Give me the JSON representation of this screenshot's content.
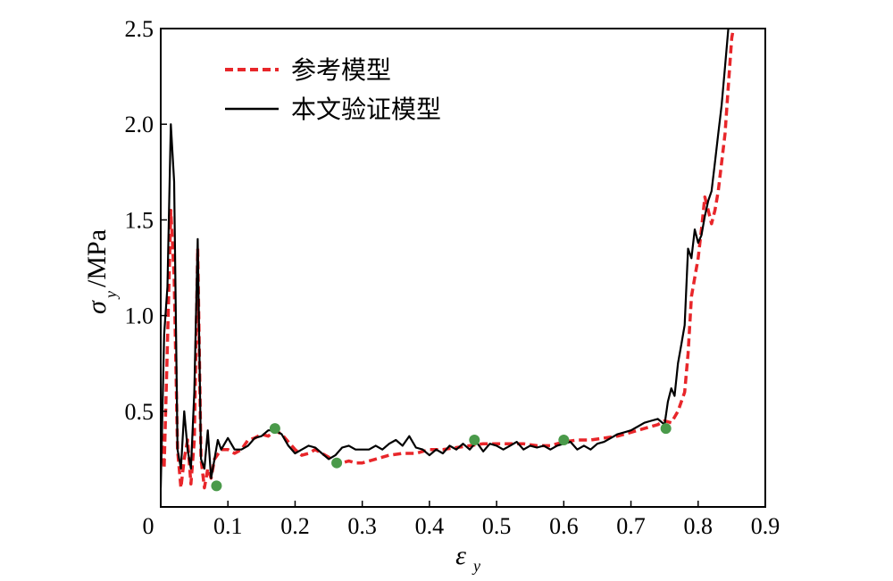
{
  "chart_data": {
    "type": "line",
    "xlabel": "ε",
    "xlabel_sub": "y",
    "ylabel": "σ",
    "ylabel_sub": "y",
    "ylabel_unit": "/MPa",
    "xlim": [
      0,
      0.9
    ],
    "ylim": [
      0,
      2.5
    ],
    "xticks": [
      "0",
      "0.1",
      "0.2",
      "0.3",
      "0.4",
      "0.5",
      "0.6",
      "0.7",
      "0.8",
      "0.9"
    ],
    "yticks": [
      "0.5",
      "1.0",
      "1.5",
      "2.0",
      "2.5"
    ],
    "legend_position": "top-left",
    "grid": false,
    "series": [
      {
        "name": "参考模型",
        "color": "#e8262a",
        "style": "dashed",
        "x": [
          0.0,
          0.005,
          0.01,
          0.015,
          0.02,
          0.025,
          0.03,
          0.035,
          0.04,
          0.045,
          0.05,
          0.055,
          0.06,
          0.065,
          0.07,
          0.075,
          0.08,
          0.09,
          0.1,
          0.11,
          0.12,
          0.13,
          0.14,
          0.15,
          0.16,
          0.17,
          0.18,
          0.19,
          0.2,
          0.21,
          0.22,
          0.23,
          0.24,
          0.25,
          0.26,
          0.27,
          0.28,
          0.29,
          0.3,
          0.32,
          0.34,
          0.36,
          0.38,
          0.4,
          0.42,
          0.44,
          0.46,
          0.48,
          0.5,
          0.52,
          0.54,
          0.56,
          0.58,
          0.6,
          0.62,
          0.64,
          0.66,
          0.68,
          0.7,
          0.72,
          0.74,
          0.75,
          0.76,
          0.77,
          0.78,
          0.785,
          0.79,
          0.8,
          0.805,
          0.81,
          0.815,
          0.82,
          0.825,
          0.83,
          0.835,
          0.84,
          0.845,
          0.85,
          0.855
        ],
        "values": [
          0.45,
          0.2,
          0.85,
          1.55,
          1.2,
          0.3,
          0.1,
          0.25,
          0.35,
          0.12,
          0.35,
          1.35,
          0.25,
          0.1,
          0.2,
          0.15,
          0.25,
          0.3,
          0.3,
          0.28,
          0.3,
          0.35,
          0.36,
          0.38,
          0.37,
          0.4,
          0.38,
          0.34,
          0.3,
          0.27,
          0.28,
          0.3,
          0.28,
          0.26,
          0.23,
          0.23,
          0.24,
          0.23,
          0.23,
          0.25,
          0.27,
          0.28,
          0.28,
          0.3,
          0.3,
          0.31,
          0.32,
          0.33,
          0.33,
          0.33,
          0.33,
          0.32,
          0.32,
          0.34,
          0.35,
          0.35,
          0.36,
          0.37,
          0.39,
          0.41,
          0.43,
          0.45,
          0.44,
          0.5,
          0.6,
          0.8,
          1.1,
          1.3,
          1.45,
          1.62,
          1.55,
          1.48,
          1.55,
          1.65,
          1.8,
          1.95,
          2.2,
          2.45,
          2.55
        ]
      },
      {
        "name": "本文验证模型",
        "color": "#000000",
        "style": "solid",
        "x": [
          0.0,
          0.005,
          0.01,
          0.015,
          0.02,
          0.025,
          0.03,
          0.035,
          0.04,
          0.045,
          0.05,
          0.055,
          0.06,
          0.065,
          0.07,
          0.075,
          0.08,
          0.085,
          0.09,
          0.1,
          0.11,
          0.12,
          0.13,
          0.14,
          0.15,
          0.16,
          0.17,
          0.18,
          0.19,
          0.2,
          0.21,
          0.22,
          0.23,
          0.24,
          0.25,
          0.26,
          0.27,
          0.28,
          0.29,
          0.3,
          0.31,
          0.32,
          0.33,
          0.34,
          0.35,
          0.36,
          0.37,
          0.38,
          0.39,
          0.4,
          0.41,
          0.42,
          0.43,
          0.44,
          0.45,
          0.46,
          0.47,
          0.48,
          0.49,
          0.5,
          0.51,
          0.52,
          0.53,
          0.54,
          0.55,
          0.56,
          0.57,
          0.58,
          0.59,
          0.6,
          0.61,
          0.62,
          0.63,
          0.64,
          0.65,
          0.66,
          0.67,
          0.68,
          0.69,
          0.7,
          0.71,
          0.72,
          0.73,
          0.74,
          0.75,
          0.755,
          0.76,
          0.765,
          0.77,
          0.775,
          0.78,
          0.785,
          0.79,
          0.795,
          0.8,
          0.805,
          0.81,
          0.815,
          0.82,
          0.825,
          0.83,
          0.835,
          0.84,
          0.845,
          0.85,
          0.855
        ],
        "values": [
          0.1,
          0.9,
          1.15,
          2.0,
          1.7,
          0.3,
          0.2,
          0.5,
          0.3,
          0.2,
          0.6,
          1.4,
          0.25,
          0.2,
          0.4,
          0.15,
          0.25,
          0.35,
          0.3,
          0.36,
          0.3,
          0.3,
          0.32,
          0.36,
          0.37,
          0.4,
          0.4,
          0.38,
          0.32,
          0.28,
          0.3,
          0.32,
          0.31,
          0.28,
          0.25,
          0.27,
          0.31,
          0.32,
          0.3,
          0.3,
          0.3,
          0.32,
          0.3,
          0.33,
          0.35,
          0.32,
          0.37,
          0.31,
          0.3,
          0.27,
          0.3,
          0.28,
          0.32,
          0.3,
          0.33,
          0.3,
          0.34,
          0.29,
          0.33,
          0.32,
          0.3,
          0.32,
          0.34,
          0.3,
          0.32,
          0.31,
          0.32,
          0.3,
          0.32,
          0.33,
          0.34,
          0.3,
          0.32,
          0.3,
          0.33,
          0.34,
          0.36,
          0.38,
          0.39,
          0.4,
          0.42,
          0.44,
          0.45,
          0.46,
          0.43,
          0.55,
          0.62,
          0.58,
          0.75,
          0.85,
          0.95,
          1.35,
          1.3,
          1.45,
          1.38,
          1.42,
          1.52,
          1.6,
          1.65,
          1.8,
          1.95,
          2.1,
          2.3,
          2.5,
          2.6,
          2.7
        ]
      }
    ],
    "markers": {
      "color": "#4a9a4a",
      "x": [
        0.083,
        0.17,
        0.262,
        0.467,
        0.6,
        0.752
      ],
      "values": [
        0.11,
        0.41,
        0.23,
        0.35,
        0.35,
        0.41
      ]
    }
  }
}
